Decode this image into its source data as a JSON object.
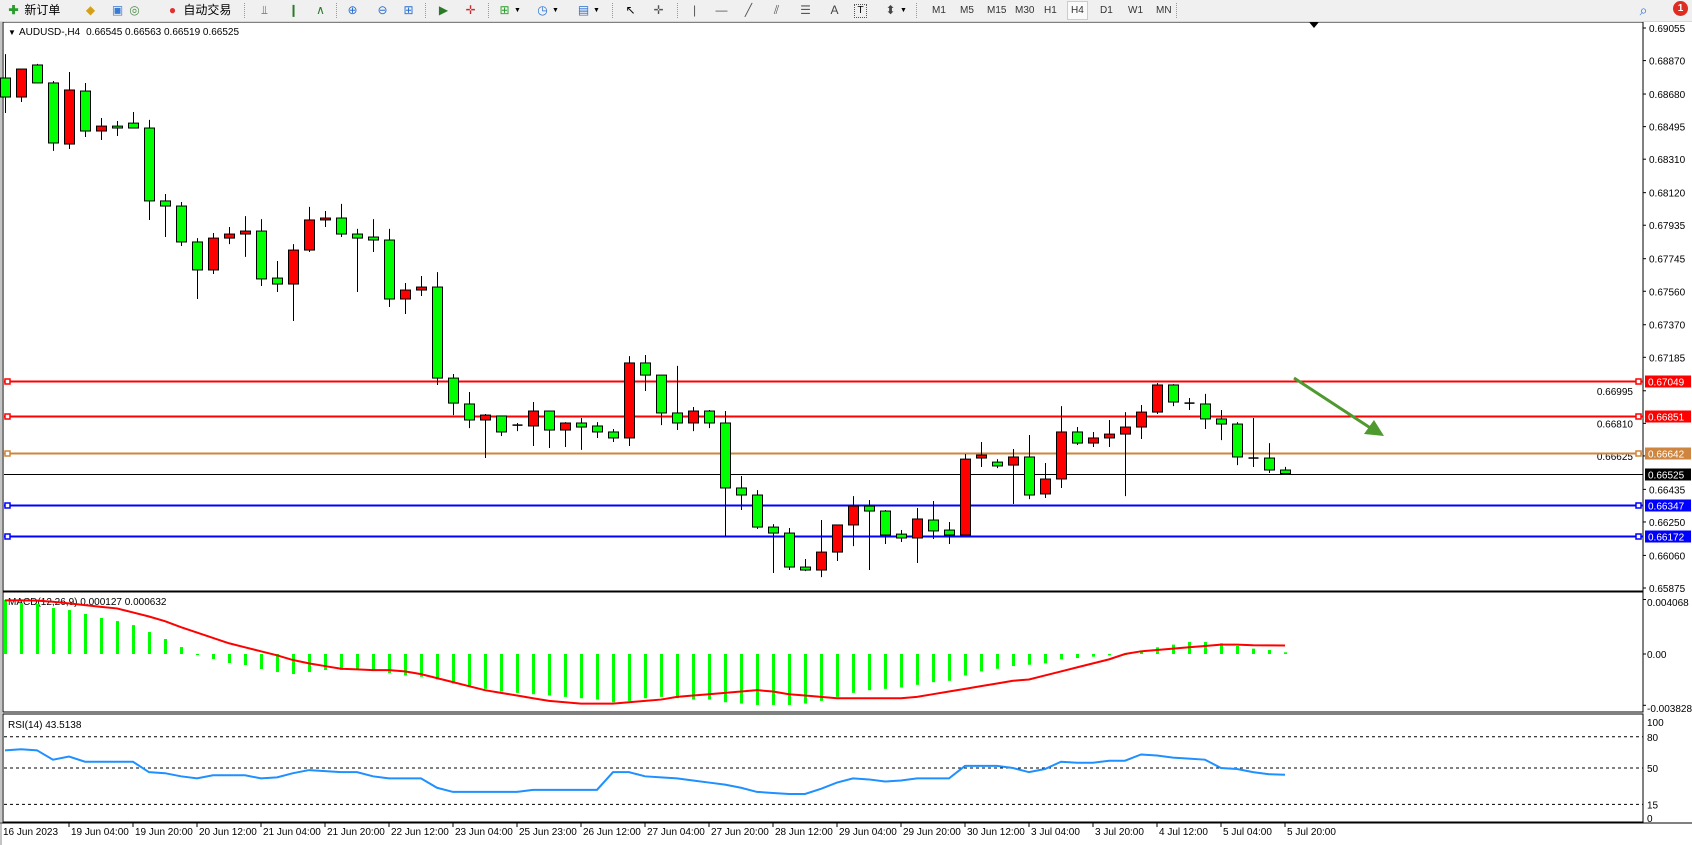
{
  "toolbar": {
    "new_order_label": "新订单",
    "auto_trading_label": "自动交易",
    "timeframes": [
      "M1",
      "M5",
      "M15",
      "M30",
      "H1",
      "H4",
      "D1",
      "W1",
      "MN"
    ],
    "active_timeframe": "H4",
    "notification_count": "1",
    "text_tool_label": "A"
  },
  "chart_header": {
    "symbol": "AUDUSD-,H4",
    "ohlc": "0.66545 0.66563 0.66519 0.66525"
  },
  "colors": {
    "bull": "#ff0000",
    "bear": "#00ff00",
    "macd_hist": "#00ff00",
    "macd_signal": "#ff0000",
    "rsi": "#1e90ff",
    "arrow": "#4e9a2e"
  },
  "chart_data": [
    {
      "type": "candlestick",
      "symbol": "AUDUSD-",
      "timeframe": "H4",
      "ylim": [
        0.65875,
        0.69055
      ],
      "y_ticks": [
        "0.69055",
        "0.68870",
        "0.68680",
        "0.68495",
        "0.68310",
        "0.68120",
        "0.67935",
        "0.67745",
        "0.67560",
        "0.67370",
        "0.67185",
        "0.66995",
        "0.66810",
        "0.66625",
        "0.66435",
        "0.66250",
        "0.66060",
        "0.65875"
      ],
      "x_ticks": [
        "16 Jun 2023",
        "19 Jun 04:00",
        "19 Jun 20:00",
        "20 Jun 12:00",
        "21 Jun 04:00",
        "21 Jun 20:00",
        "22 Jun 12:00",
        "23 Jun 04:00",
        "25 Jun 23:00",
        "26 Jun 12:00",
        "27 Jun 04:00",
        "27 Jun 20:00",
        "28 Jun 12:00",
        "29 Jun 04:00",
        "29 Jun 20:00",
        "30 Jun 12:00",
        "3 Jul 04:00",
        "3 Jul 20:00",
        "4 Jul 12:00",
        "5 Jul 04:00",
        "5 Jul 20:00"
      ],
      "ohlc": [
        [
          0.68771,
          0.68907,
          0.68572,
          0.68663
        ],
        [
          0.68663,
          0.68822,
          0.68635,
          0.68822
        ],
        [
          0.68845,
          0.68851,
          0.68743,
          0.68743
        ],
        [
          0.68743,
          0.68754,
          0.68357,
          0.68402
        ],
        [
          0.68396,
          0.68805,
          0.68368,
          0.68703
        ],
        [
          0.68697,
          0.68743,
          0.68436,
          0.6847
        ],
        [
          0.6847,
          0.68544,
          0.68419,
          0.68498
        ],
        [
          0.68498,
          0.68527,
          0.68442,
          0.68487
        ],
        [
          0.68515,
          0.68578,
          0.68487,
          0.68487
        ],
        [
          0.68487,
          0.68533,
          0.67965,
          0.68073
        ],
        [
          0.68073,
          0.68112,
          0.67868,
          0.68044
        ],
        [
          0.68044,
          0.68067,
          0.67817,
          0.6784
        ],
        [
          0.6784,
          0.67862,
          0.67516,
          0.67681
        ],
        [
          0.67681,
          0.67891,
          0.67658,
          0.67862
        ],
        [
          0.67862,
          0.67925,
          0.67828,
          0.67885
        ],
        [
          0.67885,
          0.67987,
          0.67755,
          0.67902
        ],
        [
          0.67902,
          0.6797,
          0.6759,
          0.6763
        ],
        [
          0.67635,
          0.67732,
          0.67556,
          0.67601
        ],
        [
          0.67601,
          0.67828,
          0.67391,
          0.67794
        ],
        [
          0.67794,
          0.68039,
          0.67783,
          0.67965
        ],
        [
          0.67965,
          0.68016,
          0.67925,
          0.67976
        ],
        [
          0.67976,
          0.68056,
          0.67868,
          0.67885
        ],
        [
          0.67885,
          0.67914,
          0.67556,
          0.67862
        ],
        [
          0.67868,
          0.6797,
          0.67783,
          0.67851
        ],
        [
          0.67851,
          0.67914,
          0.67471,
          0.67516
        ],
        [
          0.67516,
          0.67607,
          0.67431,
          0.67567
        ],
        [
          0.67567,
          0.67647,
          0.67533,
          0.67584
        ],
        [
          0.67584,
          0.67669,
          0.67028,
          0.67067
        ],
        [
          0.67067,
          0.6709,
          0.66857,
          0.66925
        ],
        [
          0.6692,
          0.66988,
          0.66783,
          0.66829
        ],
        [
          0.66829,
          0.66863,
          0.66613,
          0.66857
        ],
        [
          0.66852,
          0.66852,
          0.66738,
          0.66761
        ],
        [
          0.668,
          0.66812,
          0.66766,
          0.668
        ],
        [
          0.66795,
          0.66931,
          0.66681,
          0.6688
        ],
        [
          0.6688,
          0.6688,
          0.6667,
          0.66772
        ],
        [
          0.66772,
          0.66817,
          0.66676,
          0.66812
        ],
        [
          0.66812,
          0.6684,
          0.66659,
          0.66789
        ],
        [
          0.66795,
          0.66817,
          0.66727,
          0.66761
        ],
        [
          0.66761,
          0.66778,
          0.66704,
          0.66727
        ],
        [
          0.66727,
          0.67192,
          0.66681,
          0.67153
        ],
        [
          0.67153,
          0.67198,
          0.66994,
          0.67084
        ],
        [
          0.67084,
          0.67084,
          0.668,
          0.66869
        ],
        [
          0.66869,
          0.67136,
          0.66772,
          0.66812
        ],
        [
          0.66812,
          0.66903,
          0.66766,
          0.6688
        ],
        [
          0.6688,
          0.66886,
          0.66783,
          0.66812
        ],
        [
          0.66812,
          0.6688,
          0.6617,
          0.66443
        ],
        [
          0.66443,
          0.66511,
          0.66318,
          0.66403
        ],
        [
          0.66403,
          0.66431,
          0.6621,
          0.66221
        ],
        [
          0.66221,
          0.66238,
          0.6596,
          0.66187
        ],
        [
          0.66187,
          0.66216,
          0.65977,
          0.65994
        ],
        [
          0.65994,
          0.6604,
          0.65971,
          0.65977
        ],
        [
          0.65977,
          0.66261,
          0.65937,
          0.66079
        ],
        [
          0.66079,
          0.66233,
          0.66028,
          0.66233
        ],
        [
          0.66233,
          0.66397,
          0.66113,
          0.6634
        ],
        [
          0.6634,
          0.66375,
          0.65977,
          0.66312
        ],
        [
          0.66312,
          0.66318,
          0.66125,
          0.66176
        ],
        [
          0.66181,
          0.66204,
          0.66136,
          0.66159
        ],
        [
          0.66159,
          0.66329,
          0.66017,
          0.66267
        ],
        [
          0.66261,
          0.66369,
          0.66153,
          0.66199
        ],
        [
          0.66204,
          0.6625,
          0.66125,
          0.66176
        ],
        [
          0.66176,
          0.66636,
          0.66176,
          0.66607
        ],
        [
          0.66613,
          0.66704,
          0.66562,
          0.6663
        ],
        [
          0.6659,
          0.66607,
          0.66556,
          0.66568
        ],
        [
          0.66573,
          0.66664,
          0.66352,
          0.66619
        ],
        [
          0.66619,
          0.66744,
          0.6638,
          0.66403
        ],
        [
          0.66409,
          0.66585,
          0.66386,
          0.66494
        ],
        [
          0.66494,
          0.66908,
          0.66443,
          0.66761
        ],
        [
          0.66761,
          0.66789,
          0.66687,
          0.66698
        ],
        [
          0.66698,
          0.66761,
          0.66676,
          0.66727
        ],
        [
          0.66727,
          0.66829,
          0.66676,
          0.66749
        ],
        [
          0.66749,
          0.66874,
          0.66397,
          0.66789
        ],
        [
          0.66789,
          0.66914,
          0.66721,
          0.66874
        ],
        [
          0.66874,
          0.67039,
          0.66863,
          0.67028
        ],
        [
          0.67028,
          0.67033,
          0.66908,
          0.66931
        ],
        [
          0.66925,
          0.66954,
          0.66886,
          0.66925
        ],
        [
          0.6692,
          0.66977,
          0.66778,
          0.66835
        ],
        [
          0.66835,
          0.66886,
          0.66715,
          0.66806
        ],
        [
          0.66806,
          0.66817,
          0.66573,
          0.66619
        ],
        [
          0.66613,
          0.6684,
          0.66562,
          0.66613
        ],
        [
          0.66613,
          0.66698,
          0.66528,
          0.66545
        ],
        [
          0.66545,
          0.66563,
          0.66519,
          0.66525
        ]
      ],
      "hlines": [
        {
          "value": 0.67049,
          "label": "0.67049",
          "color": "#ff0000"
        },
        {
          "value": 0.66851,
          "label": "0.66851",
          "color": "#ff0000"
        },
        {
          "value": 0.66642,
          "label": "0.66642",
          "color": "#cd853f"
        },
        {
          "value": 0.66347,
          "label": "0.66347",
          "color": "#0000ff"
        },
        {
          "value": 0.66172,
          "label": "0.66172",
          "color": "#0000ff"
        }
      ],
      "current_price": {
        "value": 0.66525,
        "label": "0.66525",
        "color": "#000000"
      }
    },
    {
      "type": "bar",
      "title": "MACD(12,26,9) 0.000127 0.000632",
      "ylim": [
        -0.003828,
        0.004068
      ],
      "y_ticks": [
        "0.004068",
        "0.00",
        "-0.003828"
      ],
      "histogram": [
        0.00403,
        0.00381,
        0.00373,
        0.00343,
        0.00328,
        0.00299,
        0.00269,
        0.00246,
        0.00216,
        0.00164,
        0.00112,
        0.00052,
        -7e-05,
        -0.00037,
        -0.00067,
        -0.00082,
        -0.00112,
        -0.00134,
        -0.00149,
        -0.00134,
        -0.00119,
        -0.00119,
        -0.00112,
        -0.00119,
        -0.00142,
        -0.0016,
        -0.0017,
        -0.0019,
        -0.0022,
        -0.0024,
        -0.0026,
        -0.0028,
        -0.0029,
        -0.003,
        -0.0031,
        -0.0032,
        -0.0033,
        -0.0034,
        -0.0036,
        -0.0035,
        -0.0033,
        -0.0032,
        -0.0033,
        -0.0034,
        -0.0034,
        -0.0036,
        -0.0037,
        -0.0038,
        -0.0038,
        -0.0038,
        -0.0037,
        -0.0035,
        -0.0032,
        -0.0029,
        -0.0027,
        -0.0026,
        -0.0025,
        -0.0023,
        -0.0021,
        -0.002,
        -0.0016,
        -0.0013,
        -0.0011,
        -0.0009,
        -0.0008,
        -0.0007,
        -0.0004,
        -0.0003,
        -0.0002,
        -0.0001,
        0.0,
        0.0002,
        0.0005,
        0.0007,
        0.0009,
        0.0009,
        0.0008,
        0.0006,
        0.0004,
        0.0003,
        0.000127
      ],
      "signal": [
        0.004,
        0.004,
        0.00398,
        0.0039,
        0.00378,
        0.00365,
        0.00352,
        0.0034,
        0.0031,
        0.0028,
        0.00245,
        0.002,
        0.0016,
        0.0012,
        0.0008,
        0.0005,
        0.0002,
        -0.0001,
        -0.00045,
        -0.0007,
        -0.0009,
        -0.0011,
        -0.00115,
        -0.0012,
        -0.0012,
        -0.0013,
        -0.0015,
        -0.0018,
        -0.0021,
        -0.0024,
        -0.0027,
        -0.0029,
        -0.0031,
        -0.0033,
        -0.0035,
        -0.0036,
        -0.0037,
        -0.0037,
        -0.0037,
        -0.0036,
        -0.0035,
        -0.0034,
        -0.0032,
        -0.0031,
        -0.003,
        -0.0029,
        -0.0028,
        -0.0027,
        -0.0028,
        -0.003,
        -0.0031,
        -0.0032,
        -0.0033,
        -0.0033,
        -0.0033,
        -0.0033,
        -0.0033,
        -0.0032,
        -0.003,
        -0.0028,
        -0.0026,
        -0.0024,
        -0.0022,
        -0.002,
        -0.0019,
        -0.0016,
        -0.0013,
        -0.001,
        -0.0007,
        -0.0004,
        0.0,
        0.0002,
        0.0003,
        0.0004,
        0.0005,
        0.0006,
        0.0007,
        0.0007,
        0.00065,
        0.00064,
        0.000632
      ]
    },
    {
      "type": "line",
      "title": "RSI(14) 43.5138",
      "ylim": [
        0,
        100
      ],
      "y_ticks": [
        "100",
        "80",
        "50",
        "15",
        "0"
      ],
      "levels": [
        80,
        50,
        15
      ],
      "values": [
        67,
        68,
        67,
        58,
        61,
        56,
        56,
        56,
        56,
        46,
        45,
        42,
        40,
        43,
        43,
        43,
        40,
        41,
        45,
        48,
        47,
        46,
        46,
        42,
        40,
        40,
        40,
        31,
        27,
        27,
        27,
        27,
        27,
        29,
        29,
        29,
        29,
        29,
        46,
        46,
        42,
        41,
        40,
        38,
        36,
        34,
        31,
        27,
        26,
        25,
        25,
        30,
        36,
        40,
        39,
        37,
        38,
        40,
        40,
        40,
        52,
        52,
        52,
        50,
        46,
        49,
        56,
        55,
        55,
        57,
        57,
        63,
        62,
        60,
        59,
        58,
        50,
        49,
        46,
        44,
        43.5138
      ]
    }
  ]
}
